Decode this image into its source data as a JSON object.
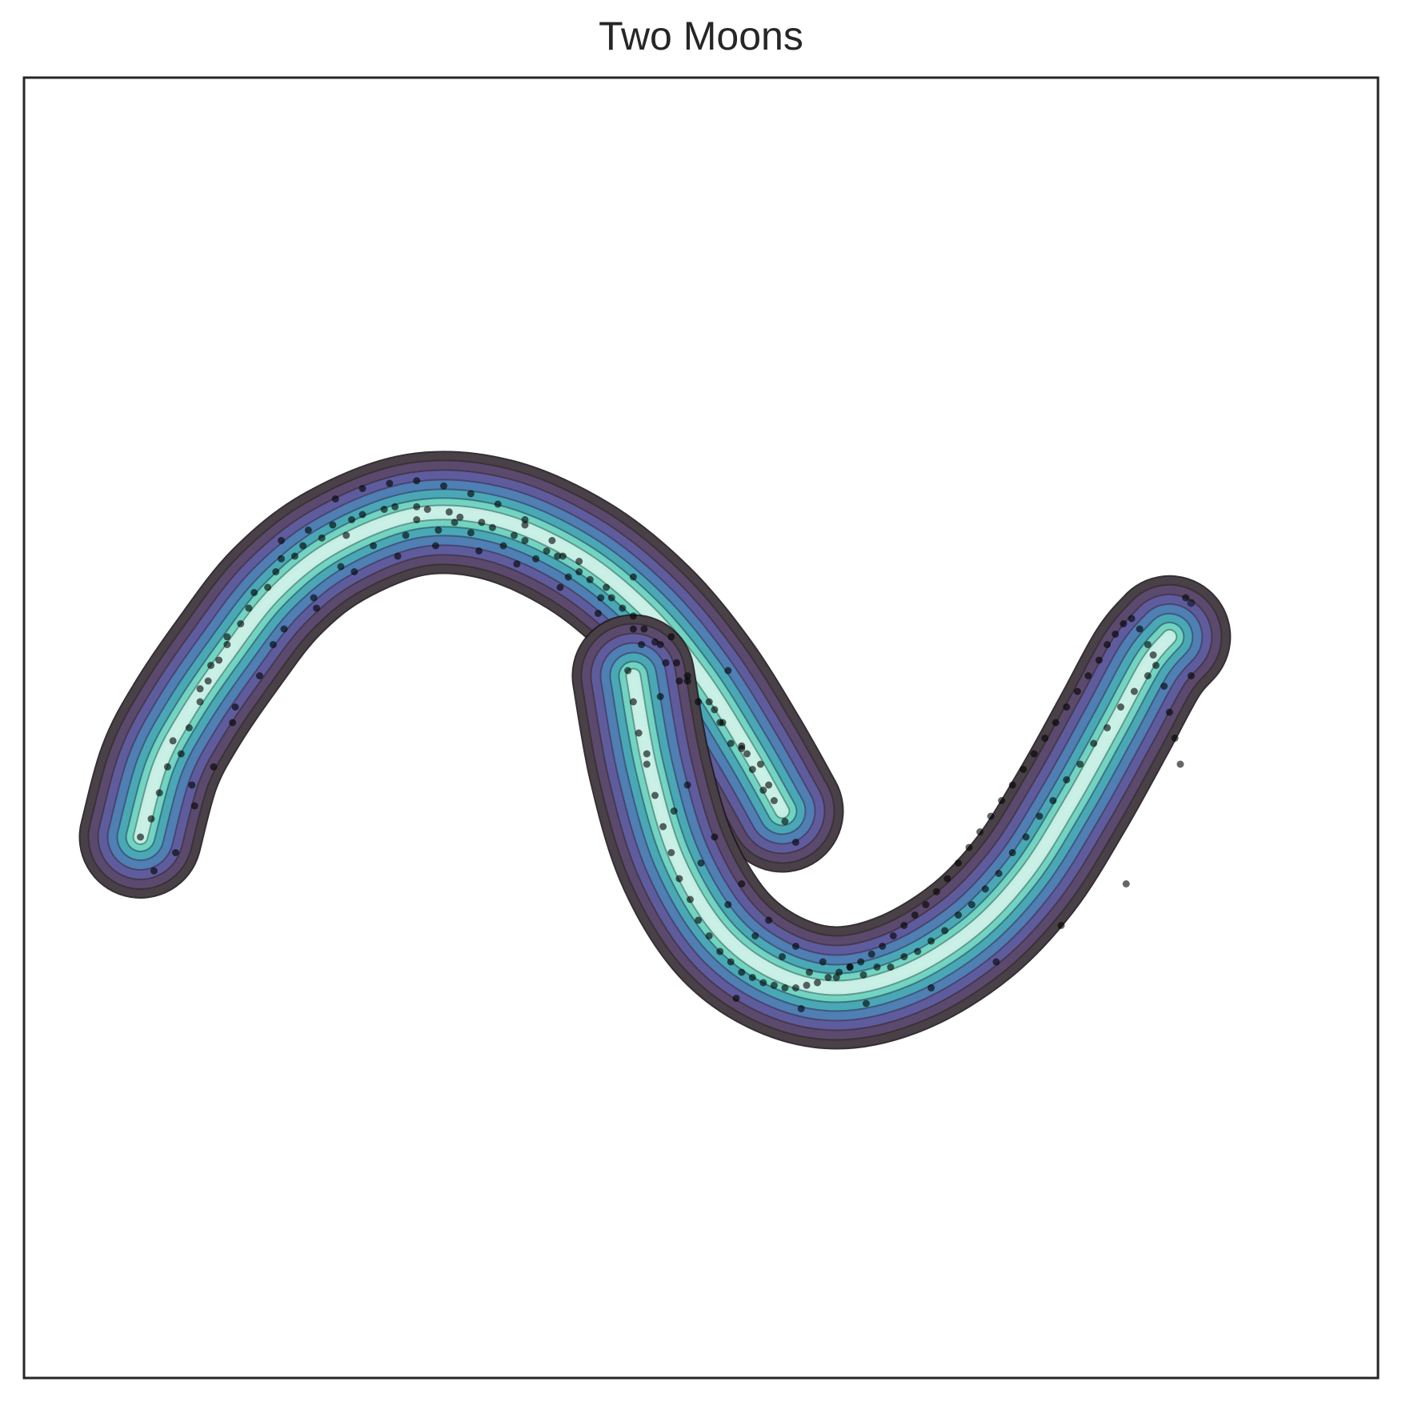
{
  "chart_data": {
    "type": "scatter",
    "overlay": "kde-density-contours",
    "title": "Two Moons",
    "xlabel": "",
    "ylabel": "",
    "xlim": [
      -2.05,
      2.95
    ],
    "ylim": [
      -2.3,
      2.7
    ],
    "ticks": "none",
    "grid": false,
    "colormap": [
      "#4a4048",
      "#5b4a6e",
      "#5f5c9e",
      "#4f7fb3",
      "#4aa8b6",
      "#6fd3c0",
      "#bdece0",
      "#ffffff"
    ],
    "point_color": "#000000",
    "series": [
      {
        "moon": "upper",
        "x": [
          -1.62,
          -1.58,
          -1.55,
          -1.52,
          -1.49,
          -1.47,
          -1.44,
          -1.42,
          -1.4,
          -1.37,
          -1.35,
          -1.33,
          -1.3,
          -1.28,
          -1.25,
          -1.22,
          -1.18,
          -1.15,
          -1.12,
          -1.09,
          -1.05,
          -1.02,
          -0.98,
          -0.95,
          -0.91,
          -0.88,
          -0.84,
          -0.8,
          -0.76,
          -0.72,
          -0.68,
          -0.64,
          -0.6,
          -0.56,
          -0.52,
          -0.48,
          -0.44,
          -0.4,
          -0.36,
          -0.32,
          -0.28,
          -0.24,
          -0.2,
          -0.16,
          -0.12,
          -0.08,
          -0.04,
          0.0,
          0.04,
          0.08,
          0.12,
          0.16,
          0.2,
          0.24,
          0.28,
          0.32,
          0.36,
          0.4,
          0.44,
          0.48,
          0.52,
          0.56,
          0.6,
          0.64,
          0.68,
          0.72,
          0.76,
          0.8,
          -1.5,
          -1.4,
          -1.3,
          -1.2,
          -1.1,
          -1.0,
          -0.9,
          -0.8,
          -0.7,
          -0.6,
          -0.5,
          -0.4,
          -0.3,
          -0.2,
          -0.1,
          0.0,
          0.1,
          0.2,
          0.3,
          0.4,
          0.5,
          0.6,
          0.7,
          -1.57,
          -1.43,
          -1.27,
          -1.13,
          -0.97,
          -0.83,
          -0.67,
          -0.53,
          -0.37,
          -0.23,
          -0.07,
          0.07,
          0.23,
          0.37,
          0.53,
          0.67,
          -1.1,
          -0.6,
          -0.2,
          0.2,
          0.55,
          -1.36,
          -0.86,
          -0.46,
          -0.06,
          0.34,
          0.62
        ],
        "y": [
          -0.22,
          -0.15,
          -0.05,
          0.05,
          -0.28,
          0.1,
          0.2,
          -0.1,
          0.3,
          0.38,
          0.05,
          0.46,
          0.52,
          0.22,
          0.6,
          0.66,
          0.4,
          0.74,
          0.8,
          0.58,
          0.86,
          0.9,
          0.7,
          0.93,
          0.98,
          0.82,
          1.0,
          1.02,
          0.9,
          1.04,
          1.05,
          0.94,
          1.05,
          1.04,
          0.96,
          1.03,
          1.01,
          0.95,
          0.99,
          0.97,
          0.9,
          0.94,
          0.92,
          0.85,
          0.88,
          0.86,
          0.78,
          0.8,
          0.77,
          0.7,
          0.7,
          0.66,
          0.58,
          0.58,
          0.53,
          0.45,
          0.45,
          0.38,
          0.3,
          0.3,
          0.22,
          0.14,
          0.12,
          0.04,
          -0.04,
          -0.08,
          -0.16,
          -0.24,
          0.15,
          0.35,
          0.55,
          0.72,
          0.85,
          0.96,
          1.08,
          1.12,
          1.14,
          1.15,
          1.13,
          1.1,
          1.06,
          1.0,
          0.92,
          0.84,
          0.74,
          0.63,
          0.52,
          0.4,
          0.27,
          0.13,
          -0.02,
          -0.35,
          -0.02,
          0.28,
          0.52,
          0.66,
          0.8,
          0.86,
          0.9,
          0.88,
          0.83,
          0.74,
          0.64,
          0.52,
          0.38,
          0.22,
          0.06,
          0.92,
          1.0,
          0.98,
          0.78,
          0.42,
          0.44,
          0.94,
          0.99,
          0.86,
          0.55,
          0.1
        ]
      },
      {
        "moon": "lower",
        "x": [
          0.18,
          0.2,
          0.22,
          0.25,
          0.28,
          0.31,
          0.34,
          0.37,
          0.41,
          0.44,
          0.48,
          0.52,
          0.56,
          0.6,
          0.64,
          0.68,
          0.72,
          0.76,
          0.8,
          0.84,
          0.88,
          0.92,
          0.96,
          1.0,
          1.04,
          1.08,
          1.12,
          1.16,
          1.2,
          1.24,
          1.28,
          1.32,
          1.36,
          1.4,
          1.44,
          1.48,
          1.52,
          1.56,
          1.6,
          1.64,
          1.68,
          1.72,
          1.76,
          1.8,
          1.84,
          1.88,
          1.92,
          1.95,
          1.98,
          2.01,
          2.04,
          2.07,
          2.1,
          2.13,
          2.16,
          2.18,
          2.2,
          2.22,
          0.25,
          0.35,
          0.45,
          0.55,
          0.65,
          0.75,
          0.85,
          0.95,
          1.05,
          1.15,
          1.25,
          1.35,
          1.45,
          1.55,
          1.65,
          1.75,
          1.85,
          1.95,
          2.05,
          2.12,
          0.3,
          0.4,
          0.5,
          0.6,
          0.7,
          0.8,
          0.9,
          1.0,
          1.1,
          1.2,
          1.3,
          1.4,
          1.5,
          1.6,
          1.7,
          1.8,
          1.9,
          2.0,
          2.1,
          0.58,
          0.82,
          1.06,
          1.3,
          1.54,
          1.78,
          2.02,
          2.26,
          2.24
        ],
        "y": [
          0.42,
          0.3,
          0.18,
          0.06,
          -0.06,
          -0.18,
          -0.28,
          -0.38,
          -0.46,
          -0.54,
          -0.6,
          -0.66,
          -0.7,
          -0.74,
          -0.76,
          -0.78,
          -0.79,
          -0.8,
          -0.8,
          -0.79,
          -0.78,
          -0.76,
          -0.74,
          -0.72,
          -0.7,
          -0.67,
          -0.64,
          -0.6,
          -0.56,
          -0.52,
          -0.48,
          -0.43,
          -0.38,
          -0.32,
          -0.26,
          -0.2,
          -0.14,
          -0.08,
          -0.02,
          0.04,
          0.1,
          0.16,
          0.22,
          0.28,
          0.34,
          0.4,
          0.46,
          0.52,
          0.56,
          0.6,
          0.62,
          0.58,
          0.52,
          0.44,
          0.36,
          0.26,
          0.16,
          0.06,
          0.1,
          -0.12,
          -0.32,
          -0.48,
          -0.6,
          -0.68,
          -0.74,
          -0.76,
          -0.75,
          -0.72,
          -0.66,
          -0.58,
          -0.48,
          -0.36,
          -0.22,
          -0.08,
          0.06,
          0.2,
          0.34,
          0.48,
          0.32,
          -0.02,
          -0.22,
          -0.4,
          -0.54,
          -0.64,
          -0.7,
          -0.72,
          -0.72,
          -0.68,
          -0.62,
          -0.52,
          -0.42,
          -0.28,
          -0.14,
          0.0,
          0.14,
          0.28,
          0.4,
          -0.84,
          -0.88,
          -0.86,
          -0.8,
          -0.7,
          -0.56,
          -0.4,
          0.4,
          0.7
        ]
      }
    ],
    "outlier": {
      "x": 2.26,
      "y": 0.68
    }
  }
}
